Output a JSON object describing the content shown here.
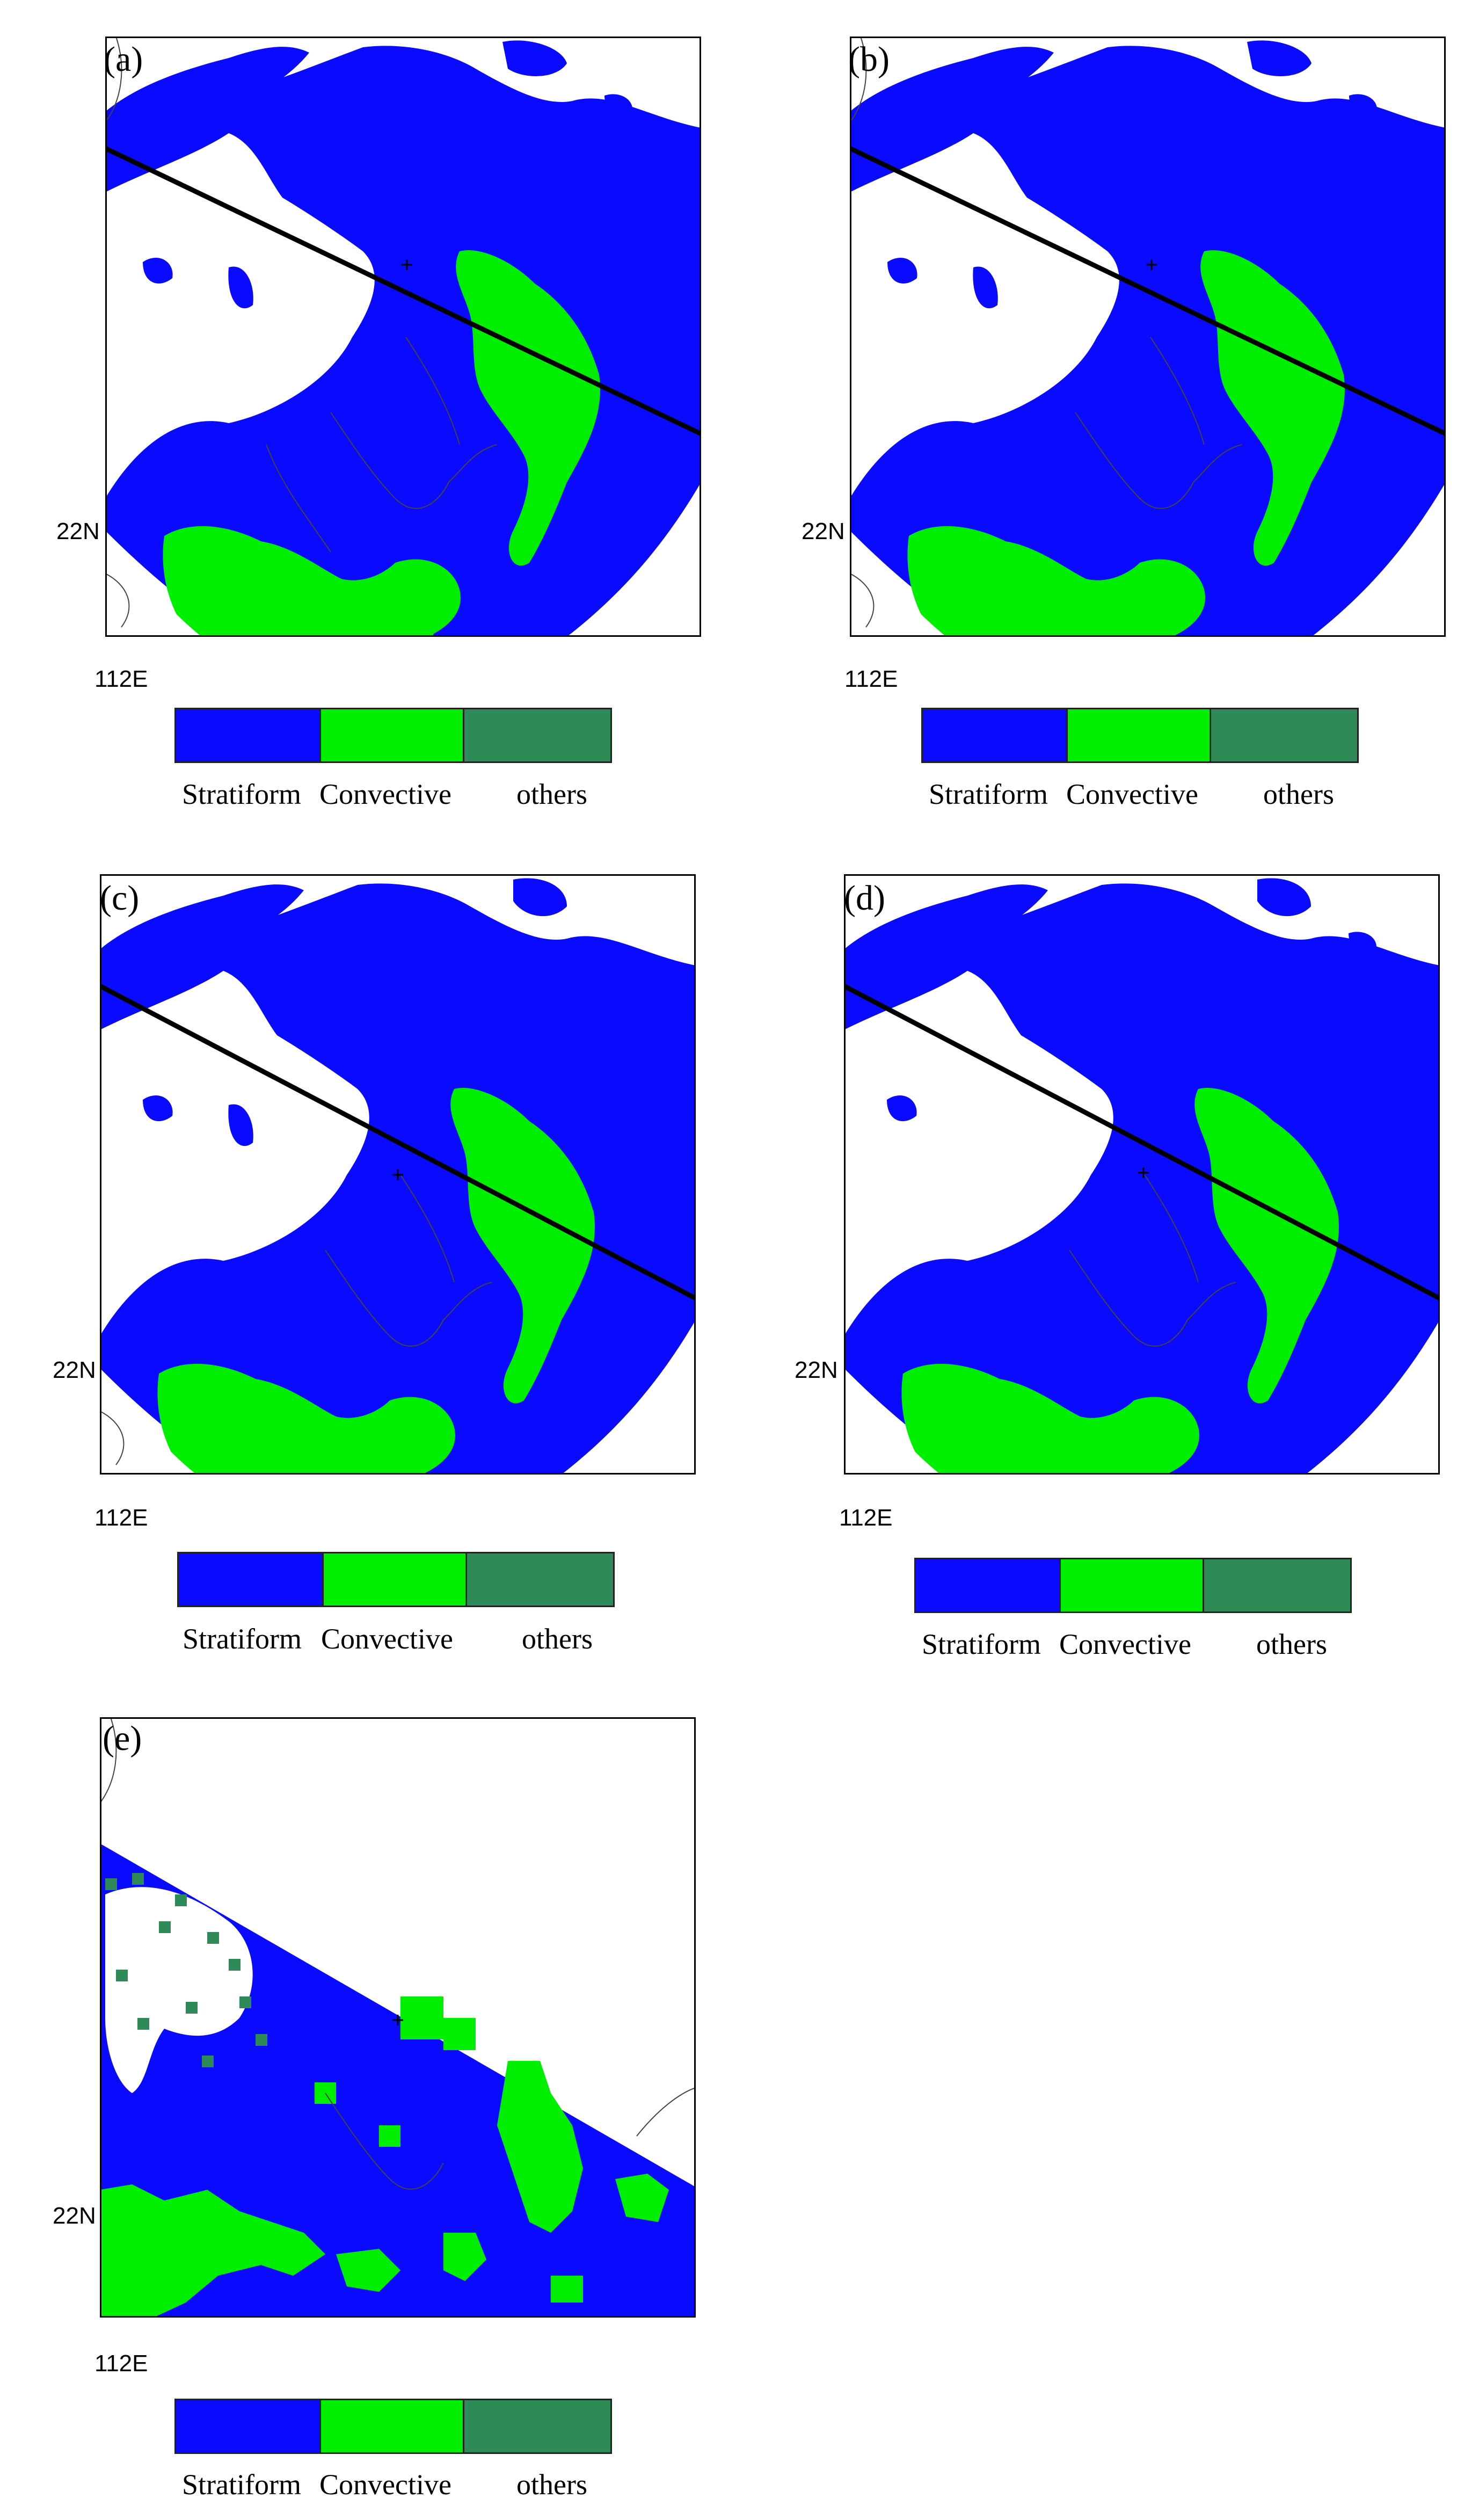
{
  "colors": {
    "stratiform": "#0a0aff",
    "convective": "#00ee00",
    "others": "#2e8b57",
    "background": "#ffffff",
    "cross_section_line": "#000000",
    "coastline": "#444444"
  },
  "axis_labels": {
    "lat": "22N",
    "lon": "112E"
  },
  "legend": {
    "categories": [
      {
        "label": "Stratiform",
        "color": "#0a0aff"
      },
      {
        "label": "Convective",
        "color": "#00ee00"
      },
      {
        "label": "others",
        "color": "#2e8b57"
      }
    ]
  },
  "panels": [
    {
      "label": "(a)",
      "has_cross_section": true,
      "style": "radar"
    },
    {
      "label": "(b)",
      "has_cross_section": true,
      "style": "radar"
    },
    {
      "label": "(c)",
      "has_cross_section": true,
      "style": "radar"
    },
    {
      "label": "(d)",
      "has_cross_section": true,
      "style": "radar"
    },
    {
      "label": "(e)",
      "has_cross_section": false,
      "style": "observation"
    }
  ]
}
